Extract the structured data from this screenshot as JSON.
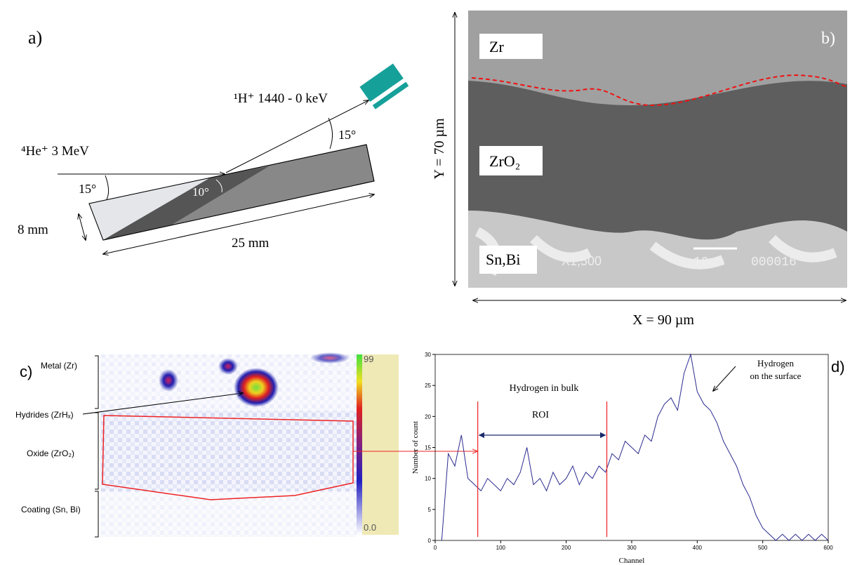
{
  "panel_a": {
    "label": "a)",
    "proton": "¹H⁺ 1440 - 0 keV",
    "helium": "⁴He⁺ 3 MeV",
    "angle_in": "15°",
    "angle_out": "15°",
    "angle_tilt": "10°",
    "thickness": "8 mm",
    "length": "25 mm"
  },
  "panel_b": {
    "label": "b)",
    "zr": "Zr",
    "zro2": "ZrO₂",
    "snbi": "Sn,Bi",
    "y_size": "Y = 70 µm",
    "x_size": "X = 90 µm",
    "sem_mag": "X1,500",
    "sem_scale": "10µm",
    "sem_id": "000016"
  },
  "panel_c": {
    "label": "c)",
    "metal": "Metal (Zr)",
    "hydrides": "Hydrides (ZrHₓ)",
    "oxide": "Oxide (ZrO₂)",
    "coating": "Coating (Sn, Bi)",
    "scale_max": "99",
    "scale_min": "0.0"
  },
  "chart_data": {
    "type": "line",
    "panel_label": "d)",
    "x_label": "Channel",
    "y_label": "Number of count",
    "annotations": [
      "Hydrogen in bulk",
      "ROI",
      "Hydrogen",
      "on the surface"
    ],
    "roi": [
      65,
      262
    ],
    "x": [
      10,
      20,
      30,
      40,
      50,
      60,
      70,
      80,
      90,
      100,
      110,
      120,
      130,
      140,
      150,
      160,
      170,
      180,
      190,
      200,
      210,
      220,
      230,
      240,
      250,
      260,
      270,
      280,
      290,
      300,
      310,
      320,
      330,
      340,
      350,
      360,
      370,
      380,
      390,
      400,
      410,
      420,
      430,
      440,
      450,
      460,
      470,
      480,
      490,
      500,
      510,
      520,
      530,
      540,
      550,
      560,
      570,
      580,
      590,
      600
    ],
    "series": [
      {
        "name": "counts",
        "color": "#2b2b8f",
        "values": [
          0,
          14,
          12,
          17,
          10,
          9,
          8,
          10,
          9,
          8,
          10,
          9,
          11,
          15,
          9,
          10,
          8,
          11,
          9,
          10,
          12,
          9,
          11,
          10,
          12,
          11,
          14,
          13,
          16,
          15,
          14,
          17,
          16,
          20,
          22,
          23,
          21,
          27,
          30,
          24,
          22,
          21,
          19,
          16,
          14,
          12,
          9,
          7,
          4,
          2,
          1,
          0,
          1,
          0,
          1,
          0,
          1,
          0,
          1,
          0
        ]
      }
    ],
    "xlim": [
      0,
      600
    ],
    "xticks": [
      0,
      100,
      200,
      300,
      400,
      500,
      600
    ],
    "ylim": [
      0,
      30
    ],
    "yticks": [
      0,
      5,
      10,
      15,
      20,
      25,
      30
    ]
  }
}
